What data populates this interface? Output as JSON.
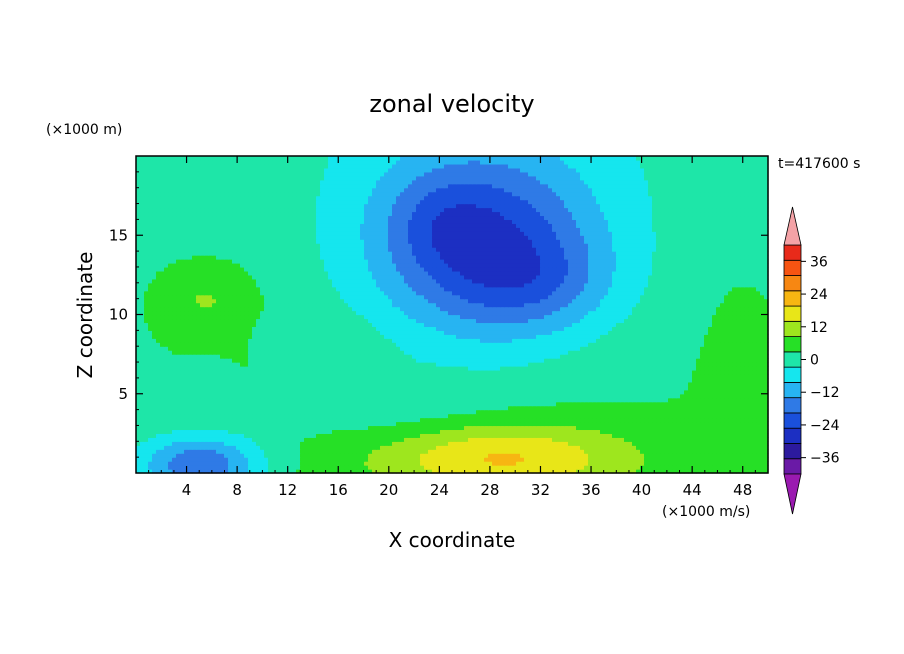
{
  "chart_data": {
    "type": "heatmap",
    "title": "zonal velocity",
    "xlabel": "X coordinate",
    "ylabel": "Z coordinate",
    "x_unit": "(×1000 m/s)",
    "y_unit": "(×1000 m)",
    "time_label": "t=417600 s",
    "xlim": [
      0,
      50
    ],
    "ylim": [
      0,
      20
    ],
    "x_ticks": [
      4,
      8,
      12,
      16,
      20,
      24,
      28,
      32,
      36,
      40,
      44,
      48
    ],
    "y_ticks": [
      5,
      10,
      15
    ],
    "colorbar": {
      "levels": [
        -42,
        -36,
        -30,
        -24,
        -18,
        -12,
        -6,
        0,
        6,
        12,
        18,
        24,
        30,
        36,
        42
      ],
      "tick_labels": [
        "36",
        "24",
        "12",
        "0",
        "−12",
        "−24",
        "−36"
      ],
      "tick_values": [
        36,
        24,
        12,
        0,
        -12,
        -24,
        -36
      ],
      "colors": [
        "#6a1aa6",
        "#2c1a9e",
        "#1c2fc2",
        "#1a50dc",
        "#2f7ae6",
        "#27b4f2",
        "#15e6ee",
        "#1ee6a8",
        "#26e026",
        "#9ee61e",
        "#e8e618",
        "#f7b612",
        "#f78712",
        "#f75412",
        "#e82a1a"
      ],
      "under_color": "#9a1ab0",
      "over_color": "#f4a2a6"
    },
    "field_features": [
      {
        "x": 28,
        "z": 14,
        "value": -22
      },
      {
        "x": 30,
        "z": 12.5,
        "value": -21
      },
      {
        "x": 5,
        "z": 11,
        "value": 11
      },
      {
        "x": 29,
        "z": 1.5,
        "value": 14
      },
      {
        "x": 4,
        "z": 0.5,
        "value": -17
      },
      {
        "x": 20,
        "z": 6,
        "value": -3
      }
    ]
  }
}
